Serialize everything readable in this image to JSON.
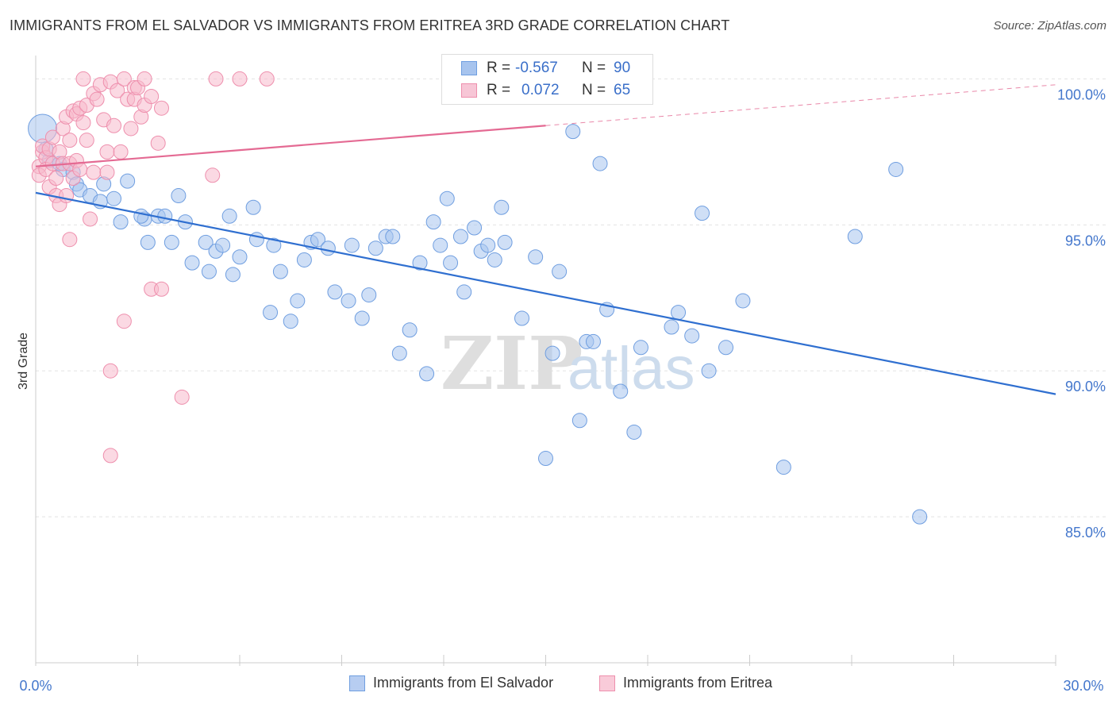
{
  "header": {
    "title": "IMMIGRANTS FROM EL SALVADOR VS IMMIGRANTS FROM ERITREA 3RD GRADE CORRELATION CHART",
    "source": "Source: ZipAtlas.com"
  },
  "stats": [
    {
      "r_label": "R =",
      "r_value": "-0.567",
      "n_label": "N =",
      "n_value": "90"
    },
    {
      "r_label": "R =",
      "r_value": "0.072",
      "n_label": "N =",
      "n_value": "65"
    }
  ],
  "colors": {
    "blue_fill": "#a7c4ee",
    "blue_stroke": "#6f9ee0",
    "blue_line": "#2f6fd0",
    "pink_fill": "#f7b9cc",
    "pink_stroke": "#ee8fad",
    "pink_line": "#e46a93",
    "tick_text": "#4477cc",
    "grid": "#e3e3e3"
  },
  "chart_data": {
    "type": "scatter",
    "title": "IMMIGRANTS FROM EL SALVADOR VS IMMIGRANTS FROM ERITREA 3RD GRADE CORRELATION CHART",
    "xlabel": "",
    "ylabel": "3rd Grade",
    "xlim": [
      0,
      30
    ],
    "ylim": [
      80,
      100.8
    ],
    "x_tick_labels": [
      "0.0%",
      "30.0%"
    ],
    "y_ticks": [
      85,
      90,
      95,
      100
    ],
    "y_tick_labels": [
      "85.0%",
      "90.0%",
      "95.0%",
      "100.0%"
    ],
    "grid": true,
    "legend_position": "bottom-center",
    "watermark": "ZIPatlas",
    "series": [
      {
        "name": "Immigrants from El Salvador",
        "color": "blue",
        "r": -0.567,
        "n": 90,
        "trend": {
          "x": [
            0,
            30
          ],
          "y": [
            96.1,
            89.2
          ],
          "dashed_from": null
        },
        "points": [
          [
            0.2,
            98.3
          ],
          [
            0.3,
            97.6
          ],
          [
            0.4,
            97.2
          ],
          [
            0.7,
            97.1
          ],
          [
            0.8,
            96.9
          ],
          [
            1.1,
            96.8
          ],
          [
            1.2,
            96.4
          ],
          [
            1.3,
            96.2
          ],
          [
            1.6,
            96.0
          ],
          [
            1.9,
            95.8
          ],
          [
            2.0,
            96.4
          ],
          [
            2.3,
            95.9
          ],
          [
            2.5,
            95.1
          ],
          [
            2.7,
            96.5
          ],
          [
            3.2,
            95.2
          ],
          [
            3.1,
            95.3
          ],
          [
            3.3,
            94.4
          ],
          [
            3.6,
            95.3
          ],
          [
            3.8,
            95.3
          ],
          [
            4.0,
            94.4
          ],
          [
            4.2,
            96.0
          ],
          [
            4.4,
            95.1
          ],
          [
            4.6,
            93.7
          ],
          [
            5.0,
            94.4
          ],
          [
            5.1,
            93.4
          ],
          [
            5.3,
            94.1
          ],
          [
            5.5,
            94.3
          ],
          [
            5.7,
            95.3
          ],
          [
            5.8,
            93.3
          ],
          [
            6.0,
            93.9
          ],
          [
            6.4,
            95.6
          ],
          [
            6.5,
            94.5
          ],
          [
            6.9,
            92.0
          ],
          [
            7.0,
            94.3
          ],
          [
            7.2,
            93.4
          ],
          [
            7.5,
            91.7
          ],
          [
            7.7,
            92.4
          ],
          [
            7.9,
            93.8
          ],
          [
            8.1,
            94.4
          ],
          [
            8.3,
            94.5
          ],
          [
            8.6,
            94.2
          ],
          [
            8.8,
            92.7
          ],
          [
            9.2,
            92.4
          ],
          [
            9.3,
            94.3
          ],
          [
            9.6,
            91.8
          ],
          [
            9.8,
            92.6
          ],
          [
            10.0,
            94.2
          ],
          [
            10.3,
            94.6
          ],
          [
            10.5,
            94.6
          ],
          [
            10.7,
            90.6
          ],
          [
            11.0,
            91.4
          ],
          [
            11.3,
            93.7
          ],
          [
            11.5,
            89.9
          ],
          [
            11.7,
            95.1
          ],
          [
            11.9,
            94.3
          ],
          [
            12.1,
            95.9
          ],
          [
            12.2,
            93.7
          ],
          [
            12.5,
            94.6
          ],
          [
            12.6,
            92.7
          ],
          [
            12.9,
            94.9
          ],
          [
            13.1,
            94.1
          ],
          [
            13.3,
            94.3
          ],
          [
            13.5,
            93.8
          ],
          [
            13.7,
            95.6
          ],
          [
            13.8,
            94.4
          ],
          [
            14.3,
            91.8
          ],
          [
            14.7,
            93.9
          ],
          [
            15.0,
            87.0
          ],
          [
            15.2,
            90.6
          ],
          [
            15.4,
            93.4
          ],
          [
            15.8,
            98.2
          ],
          [
            16.0,
            88.3
          ],
          [
            16.2,
            91.0
          ],
          [
            16.4,
            91.0
          ],
          [
            16.6,
            97.1
          ],
          [
            16.8,
            92.1
          ],
          [
            17.2,
            89.3
          ],
          [
            17.6,
            87.9
          ],
          [
            17.8,
            90.8
          ],
          [
            18.7,
            91.5
          ],
          [
            18.9,
            92.0
          ],
          [
            19.3,
            91.2
          ],
          [
            19.6,
            95.4
          ],
          [
            19.8,
            90.0
          ],
          [
            20.3,
            90.8
          ],
          [
            20.8,
            92.4
          ],
          [
            22.0,
            86.7
          ],
          [
            24.1,
            94.6
          ],
          [
            25.3,
            96.9
          ],
          [
            26.0,
            85.0
          ]
        ]
      },
      {
        "name": "Immigrants from Eritrea",
        "color": "pink",
        "r": 0.072,
        "n": 65,
        "trend": {
          "x": [
            0,
            30
          ],
          "y": [
            97.0,
            99.8
          ],
          "dashed_from": 15.0
        },
        "points": [
          [
            0.1,
            97.0
          ],
          [
            0.1,
            96.7
          ],
          [
            0.2,
            97.5
          ],
          [
            0.2,
            97.7
          ],
          [
            0.3,
            97.3
          ],
          [
            0.3,
            96.9
          ],
          [
            0.4,
            97.6
          ],
          [
            0.4,
            96.3
          ],
          [
            0.5,
            98.0
          ],
          [
            0.5,
            97.1
          ],
          [
            0.6,
            96.6
          ],
          [
            0.6,
            96.0
          ],
          [
            0.7,
            95.7
          ],
          [
            0.7,
            97.5
          ],
          [
            0.8,
            98.3
          ],
          [
            0.8,
            97.1
          ],
          [
            0.9,
            96.0
          ],
          [
            0.9,
            98.7
          ],
          [
            1.0,
            97.9
          ],
          [
            1.0,
            97.1
          ],
          [
            1.0,
            94.5
          ],
          [
            1.1,
            96.6
          ],
          [
            1.1,
            98.9
          ],
          [
            1.2,
            98.8
          ],
          [
            1.2,
            97.2
          ],
          [
            1.3,
            99.0
          ],
          [
            1.3,
            96.9
          ],
          [
            1.4,
            98.5
          ],
          [
            1.4,
            100.0
          ],
          [
            1.5,
            97.9
          ],
          [
            1.5,
            99.1
          ],
          [
            1.6,
            95.2
          ],
          [
            1.7,
            99.5
          ],
          [
            1.7,
            96.8
          ],
          [
            1.8,
            99.3
          ],
          [
            1.9,
            99.8
          ],
          [
            2.0,
            98.6
          ],
          [
            2.1,
            97.5
          ],
          [
            2.1,
            96.8
          ],
          [
            2.2,
            99.9
          ],
          [
            2.3,
            98.4
          ],
          [
            2.4,
            99.6
          ],
          [
            2.5,
            97.5
          ],
          [
            2.6,
            100.0
          ],
          [
            2.7,
            99.3
          ],
          [
            2.8,
            98.3
          ],
          [
            2.9,
            99.7
          ],
          [
            2.9,
            99.3
          ],
          [
            3.0,
            99.7
          ],
          [
            3.1,
            98.7
          ],
          [
            3.2,
            99.1
          ],
          [
            3.4,
            99.4
          ],
          [
            3.6,
            97.8
          ],
          [
            3.7,
            99.0
          ],
          [
            2.6,
            91.7
          ],
          [
            2.2,
            90.0
          ],
          [
            2.2,
            87.1
          ],
          [
            3.4,
            92.8
          ],
          [
            3.7,
            92.8
          ],
          [
            4.3,
            89.1
          ],
          [
            5.2,
            96.7
          ],
          [
            5.3,
            100.0
          ],
          [
            6.0,
            100.0
          ],
          [
            6.8,
            100.0
          ],
          [
            3.2,
            100.0
          ]
        ]
      }
    ]
  },
  "legend": {
    "items": [
      "Immigrants from El Salvador",
      "Immigrants from Eritrea"
    ]
  }
}
